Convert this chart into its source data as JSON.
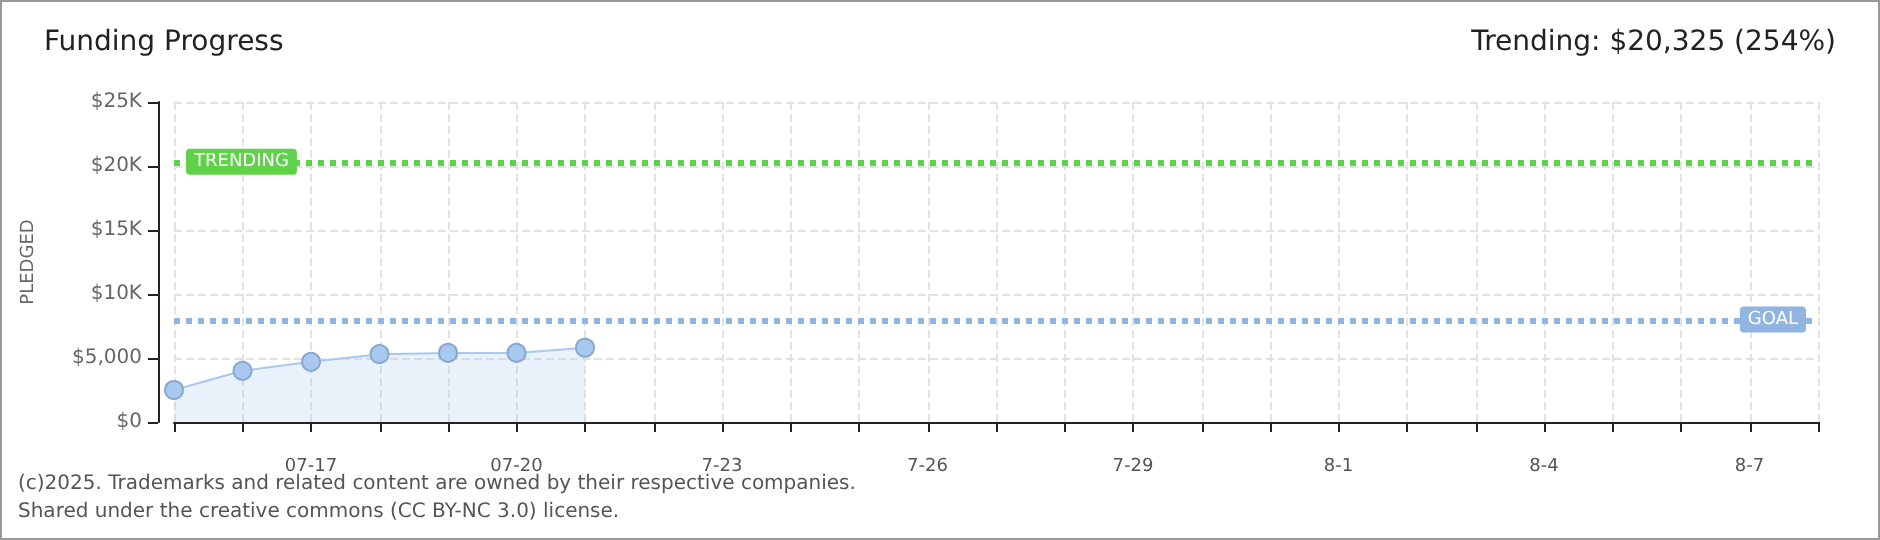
{
  "chart_data": {
    "type": "area",
    "title": "Funding Progress",
    "subtitle": "Trending: $20,325 (254%)",
    "ylabel": "PLEDGED",
    "categories": [
      null,
      null,
      "07-17",
      null,
      null,
      "07-20",
      null,
      null,
      "7-23",
      null,
      null,
      "7-26",
      null,
      null,
      "7-29",
      null,
      null,
      "8-1",
      null,
      null,
      "8-4",
      null,
      null,
      "8-7",
      null
    ],
    "series": [
      {
        "color": "#a8c8f0",
        "values": [
          2500,
          4000,
          4700,
          5300,
          5400,
          5400,
          5800,
          null,
          null,
          null,
          null,
          null,
          null,
          null,
          null,
          null,
          null,
          null,
          null,
          null,
          null,
          null,
          null,
          null,
          null
        ]
      }
    ],
    "ylim": [
      0,
      25000
    ],
    "yticks": [
      {
        "value": 0,
        "label": "$0"
      },
      {
        "value": 5000,
        "label": "$5,000"
      },
      {
        "value": 10000,
        "label": "$10K"
      },
      {
        "value": 15000,
        "label": "$15K"
      },
      {
        "value": 20000,
        "label": "$20K"
      },
      {
        "value": 25000,
        "label": "$25K"
      }
    ],
    "ref_lines": [
      {
        "axis": "y",
        "value": 20325,
        "label": "TRENDING",
        "color": "#5fd24a",
        "line_style": "dotted"
      },
      {
        "axis": "y",
        "value": 8000,
        "label": "GOAL",
        "color": "#8fb5e0",
        "line_style": "dotted"
      }
    ],
    "grid": true,
    "marker": "circle",
    "annotations": [
      "(c)2025. Trademarks and related content are owned by their respective companies.",
      "Shared under the creative commons (CC BY-NC 3.0) license."
    ]
  }
}
